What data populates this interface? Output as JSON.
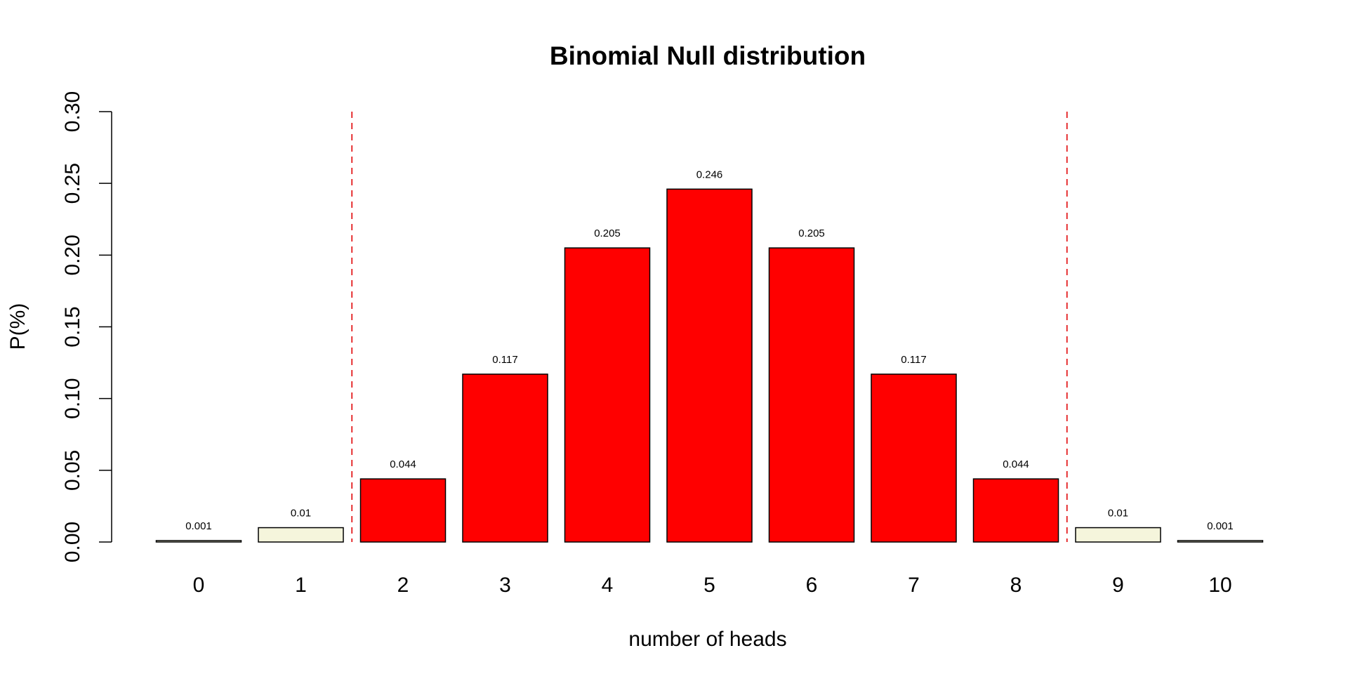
{
  "chart_data": {
    "type": "bar",
    "title": "Binomial Null distribution",
    "xlabel": "number of heads",
    "ylabel": "P(%)",
    "categories": [
      "0",
      "1",
      "2",
      "3",
      "4",
      "5",
      "6",
      "7",
      "8",
      "9",
      "10"
    ],
    "values": [
      0.001,
      0.01,
      0.044,
      0.117,
      0.205,
      0.246,
      0.205,
      0.117,
      0.044,
      0.01,
      0.001
    ],
    "value_labels": [
      "0.001",
      "0.01",
      "0.044",
      "0.117",
      "0.205",
      "0.246",
      "0.205",
      "0.117",
      "0.044",
      "0.01",
      "0.001"
    ],
    "ylim": [
      0,
      0.3
    ],
    "yticks": [
      0.0,
      0.05,
      0.1,
      0.15,
      0.2,
      0.25,
      0.3
    ],
    "ytick_labels": [
      "0.00",
      "0.05",
      "0.10",
      "0.15",
      "0.20",
      "0.25",
      "0.30"
    ],
    "bar_colors": [
      "#f5f5dc",
      "#f5f5dc",
      "#ff0000",
      "#ff0000",
      "#ff0000",
      "#ff0000",
      "#ff0000",
      "#ff0000",
      "#ff0000",
      "#f5f5dc",
      "#f5f5dc"
    ],
    "bar_border_color": "#000000",
    "critical_lines": {
      "color": "#e31a1c",
      "style": "dashed",
      "between_categories": [
        [
          "1",
          "2"
        ],
        [
          "8",
          "9"
        ]
      ]
    },
    "grid": false,
    "legend": "none"
  }
}
